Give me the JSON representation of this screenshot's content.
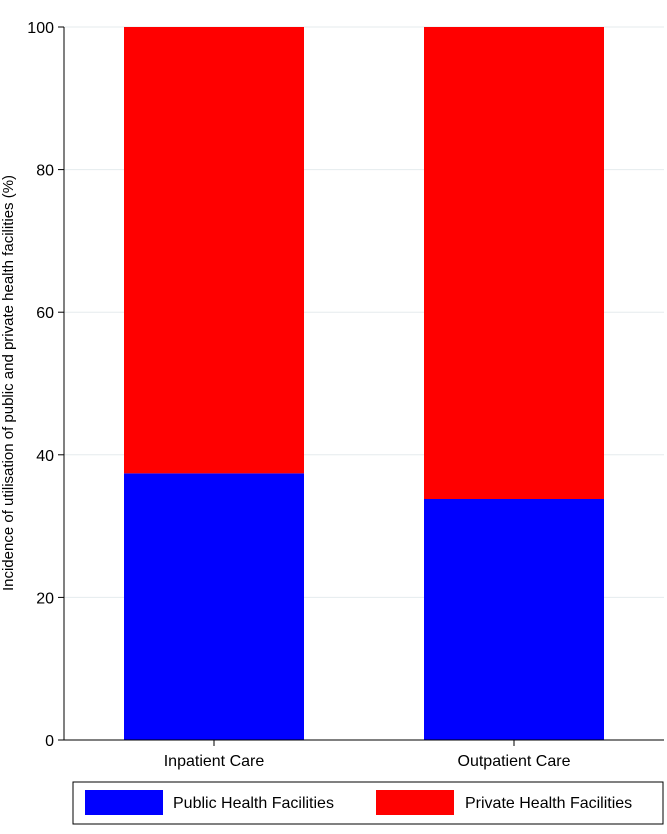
{
  "chart_data": {
    "type": "bar",
    "stacked": true,
    "categories": [
      "Inpatient Care",
      "Outpatient Care"
    ],
    "series": [
      {
        "name": "Public Health Facilities",
        "color": "#0000ff",
        "values": [
          37.4,
          33.8
        ]
      },
      {
        "name": "Private Health Facilities",
        "color": "#ff0000",
        "values": [
          62.6,
          66.2
        ]
      }
    ],
    "title": "",
    "xlabel": "",
    "ylabel": "Incidence of utilisation of public and private health facilities (%)",
    "ylim": [
      0,
      100
    ],
    "yticks": [
      0,
      20,
      40,
      60,
      80,
      100
    ],
    "grid": true,
    "legend_position": "bottom"
  }
}
